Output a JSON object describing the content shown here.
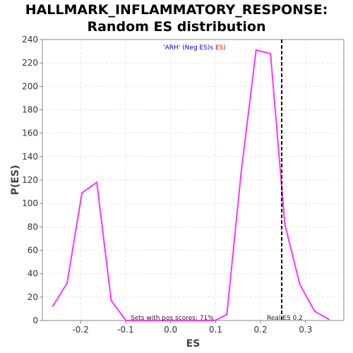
{
  "chart_data": {
    "type": "line",
    "title_line1": "HALLMARK_INFLAMMATORY_RESPONSE:",
    "title_line2": "Random ES distribution",
    "xlabel": "ES",
    "ylabel": "P(ES)",
    "xlim": [
      -0.285,
      0.385
    ],
    "ylim": [
      0,
      240
    ],
    "xticks": [
      -0.2,
      -0.1,
      0.0,
      0.1,
      0.2,
      0.3
    ],
    "xtick_labels": [
      "-0.2",
      "-0.1",
      "0.0",
      "0.1",
      "0.2",
      "0.3"
    ],
    "yticks": [
      0,
      20,
      40,
      60,
      80,
      100,
      120,
      140,
      160,
      180,
      200,
      220,
      240
    ],
    "ytick_labels": [
      "0",
      "20",
      "40",
      "60",
      "80",
      "100",
      "120",
      "140",
      "160",
      "180",
      "200",
      "220",
      "240"
    ],
    "grid": true,
    "series": [
      {
        "color": "#ff33ff",
        "x": [
          -0.262,
          -0.23,
          -0.197,
          -0.164,
          -0.132,
          -0.099,
          -0.066,
          -0.033,
          0.0,
          0.033,
          0.066,
          0.098,
          0.125,
          0.157,
          0.19,
          0.222,
          0.254,
          0.287,
          0.32,
          0.352
        ],
        "y": [
          12,
          32,
          109,
          118,
          17,
          0,
          0,
          0,
          0,
          0,
          0,
          0,
          5,
          127,
          231,
          228,
          82,
          31,
          8,
          1
        ]
      }
    ],
    "real_es": 0.247,
    "legend": {
      "part1": "'ARH' (Neg ES)",
      "part1_color": "#0000ff",
      "part2": "s",
      "part2_color": "#0000ff",
      "part3": " ES)",
      "part3_color": "#ff0000"
    },
    "annotation_pos": "Sets with pos scores: 71%",
    "annotation_real": "Real ES 0.2"
  }
}
